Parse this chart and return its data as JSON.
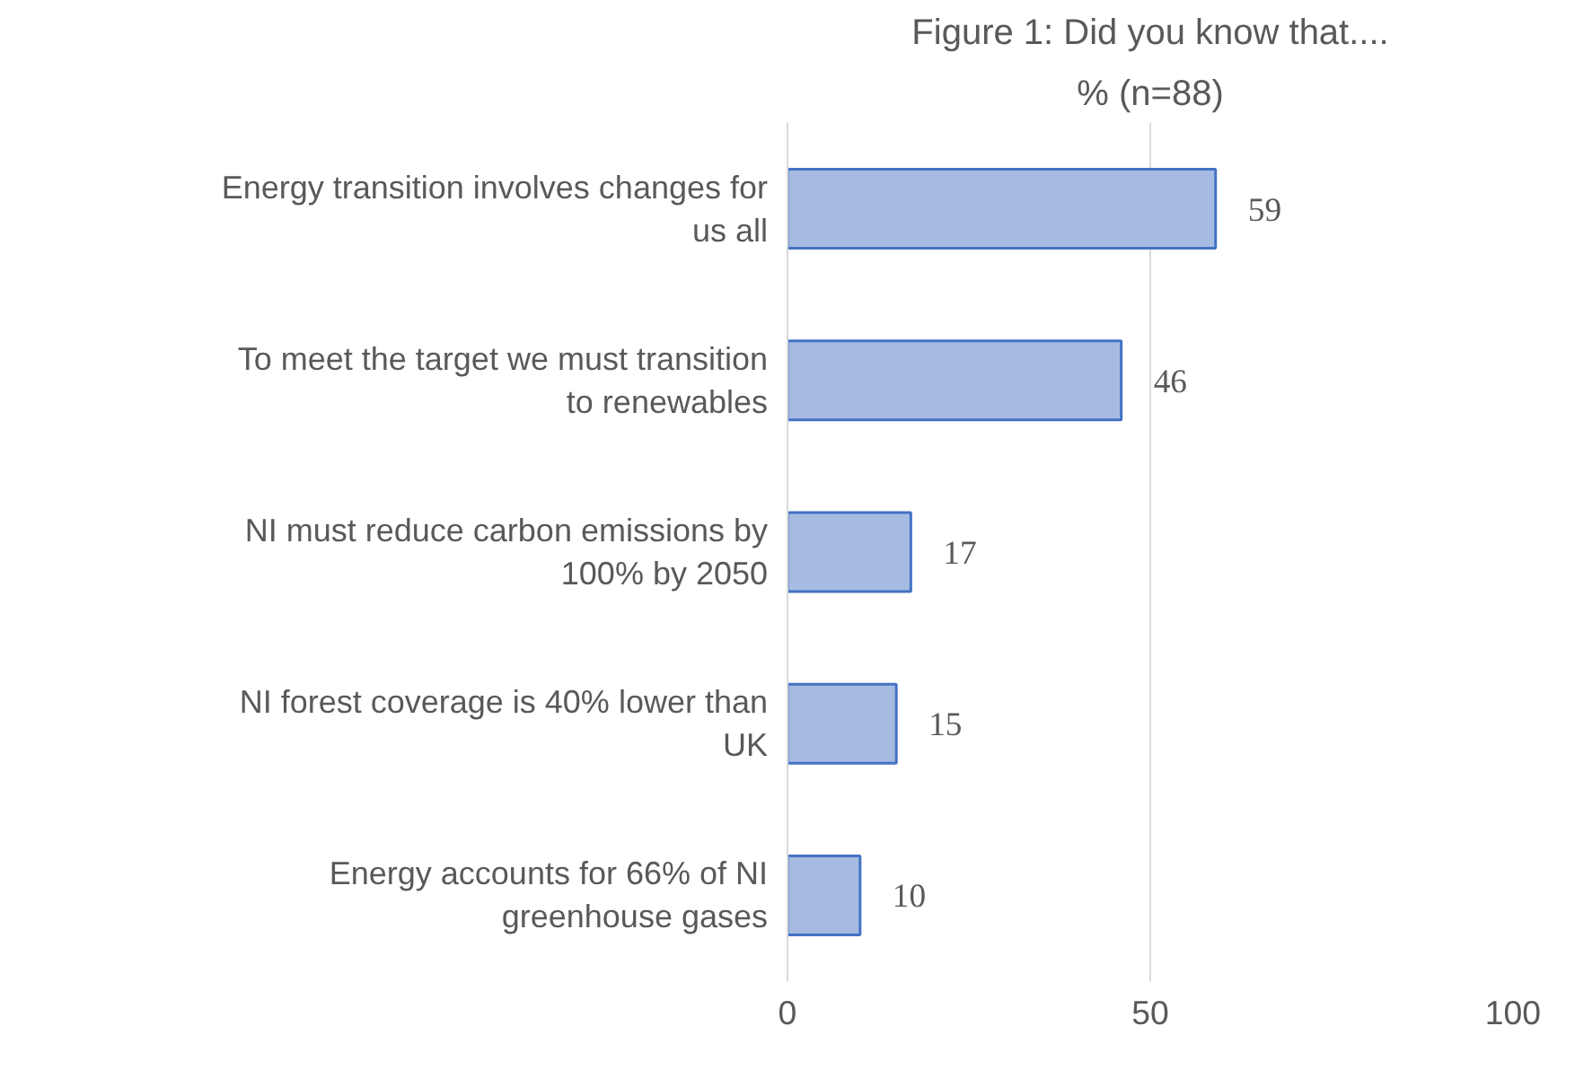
{
  "chart_data": {
    "type": "bar",
    "orientation": "horizontal",
    "title": "Figure 1: Did you know that....",
    "subtitle": "% (n=88)",
    "categories": [
      "Energy transition involves changes for us all",
      "To meet the target we must transition to renewables",
      "NI must reduce carbon emissions by 100% by 2050",
      "NI forest coverage is 40% lower than UK",
      "Energy accounts for 66% of NI greenhouse gases"
    ],
    "values": [
      59,
      46,
      17,
      15,
      10
    ],
    "color": "#a5bbe0",
    "xlim": [
      0,
      100
    ],
    "xticks": [
      0,
      50,
      100
    ],
    "grid": "x",
    "data_labels": true
  }
}
